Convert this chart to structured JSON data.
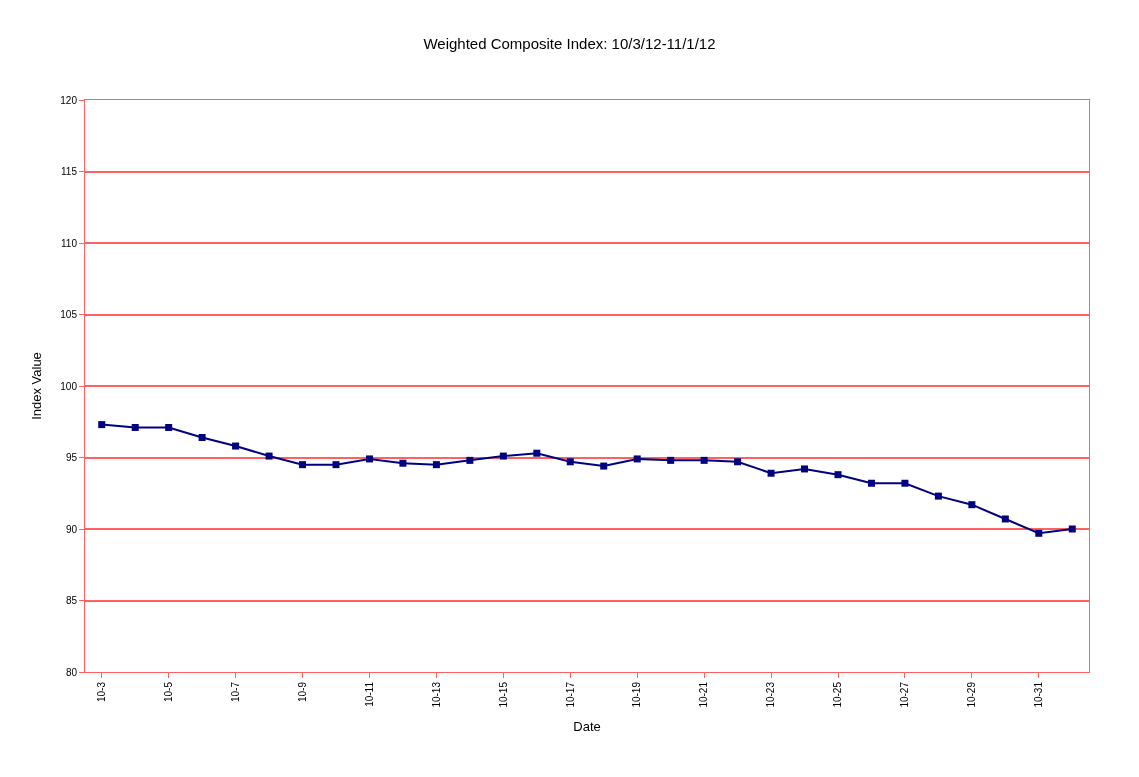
{
  "chart_data": {
    "type": "line",
    "title": "Weighted Composite Index: 10/3/12-11/1/12",
    "xlabel": "Date",
    "ylabel": "Index Value",
    "categories": [
      "10-3",
      null,
      "10-5",
      null,
      "10-7",
      null,
      "10-9",
      null,
      "10-11",
      null,
      "10-13",
      null,
      "10-15",
      null,
      "10-17",
      null,
      "10-19",
      null,
      "10-21",
      null,
      "10-23",
      null,
      "10-25",
      null,
      "10-27",
      null,
      "10-29",
      null,
      "10-31",
      null
    ],
    "series": [
      {
        "color": "#000080",
        "values": [
          97.3,
          97.1,
          97.1,
          96.4,
          95.8,
          95.1,
          94.5,
          94.5,
          94.9,
          94.6,
          94.5,
          94.8,
          95.1,
          95.3,
          94.7,
          94.4,
          94.9,
          94.8,
          94.8,
          94.7,
          93.9,
          94.2,
          93.8,
          93.2,
          93.2,
          92.3,
          91.7,
          90.7,
          89.7,
          90.0
        ]
      }
    ],
    "ylim": [
      80,
      120
    ],
    "yticks": [
      80,
      85,
      90,
      95,
      100,
      105,
      110,
      115,
      120
    ],
    "grid": "y",
    "legend": false,
    "marker": "square",
    "line_style": "solid"
  }
}
